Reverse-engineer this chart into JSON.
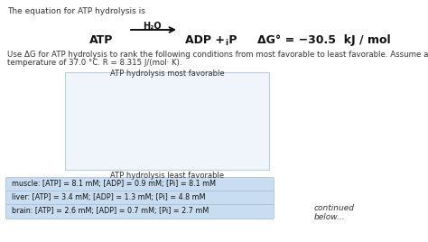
{
  "bg_color": "#ffffff",
  "title_line": "The equation for ATP hydrolysis is",
  "equation_atp": "ATP",
  "equation_h2o": "H₂O",
  "equation_products": "ADP + P",
  "equation_pi_sub": "i",
  "equation_delta": "ΔG° = −30.5  kJ / mol",
  "body_text_line1": "Use ΔG for ATP hydrolysis to rank the following conditions from most favorable to least favorable. Assume a",
  "body_text_line2": "temperature of 37.0 °C. R = 8.315 J/(mol· K).",
  "box_top_label": "ATP hydrolysis most favorable",
  "box_bottom_label": "ATP hydrolysis least favorable",
  "box_color": "#f0f5fb",
  "box_border_color": "#b8cfe0",
  "row1_text": "muscle: [ATP] = 8.1 mM; [ADP] = 0.9 mM; [Pi] = 8.1 mM",
  "row2_text": "liver: [ATP] = 3.4 mM; [ADP] = 1.3 mM; [Pi] = 4.8 mM",
  "row3_text": "brain: [ATP] = 2.6 mM; [ADP] = 0.7 mM; [Pi] = 2.7 mM",
  "row_bg": "#c8ddf0",
  "row_border": "#9fbdd4",
  "continued_text": "continued\nbelow...",
  "text_color": "#333333",
  "eq_color": "#111111"
}
